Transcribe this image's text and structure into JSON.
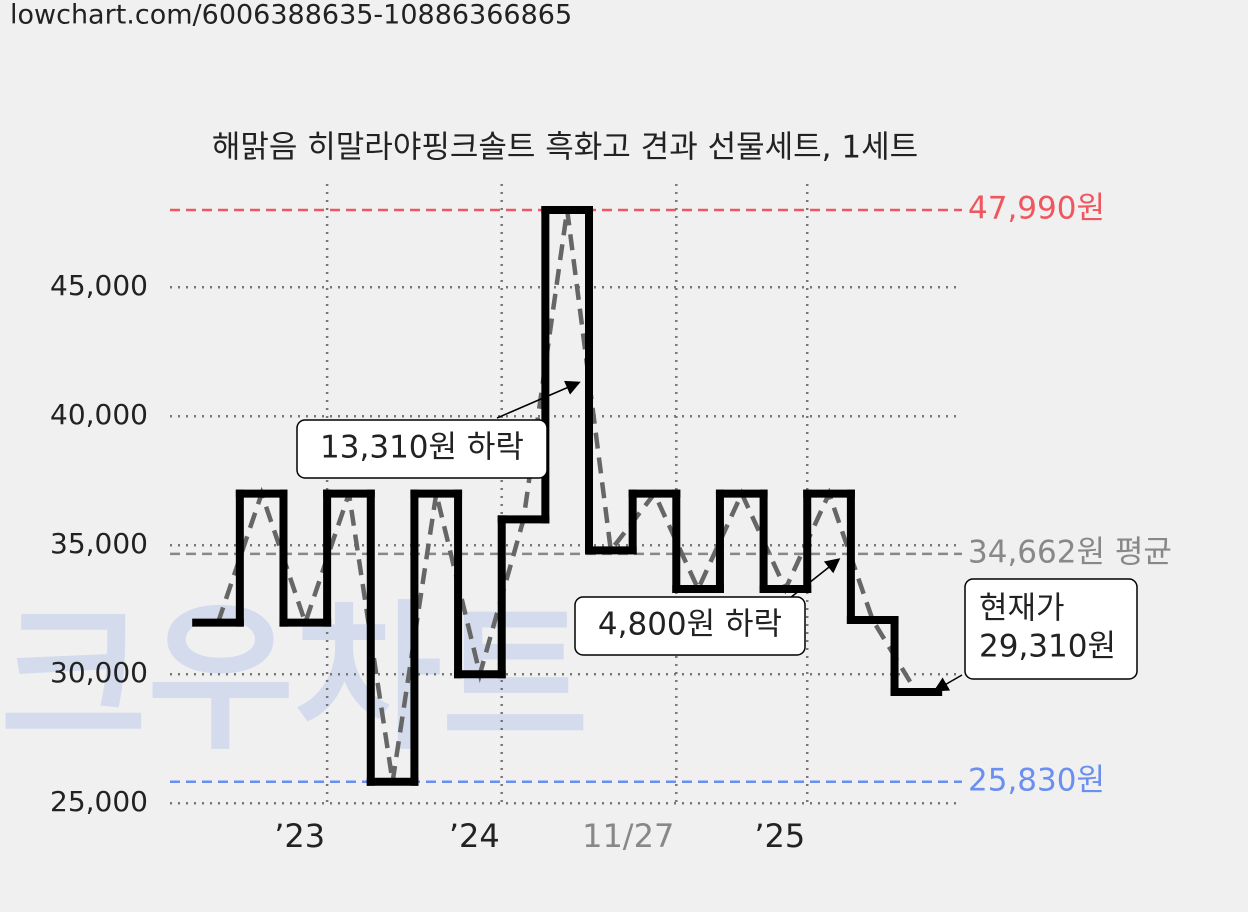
{
  "url": "lowchart.com/6006388635-10886366865",
  "watermark": "크우차트",
  "chart_data": {
    "type": "step",
    "title": "해맑음 히말라야핑크솔트 흑화고 견과 선물세트, 1세트",
    "x": [
      0,
      1,
      2,
      3,
      4,
      5,
      6,
      7,
      8,
      9,
      10,
      11,
      12,
      13,
      14,
      15,
      16
    ],
    "xlim": [
      -0.6,
      17.5
    ],
    "xticks": [
      {
        "value": 3,
        "label": "’23"
      },
      {
        "value": 7,
        "label": "’24"
      },
      {
        "value": 11,
        "label": "11/27",
        "color": "#888888"
      },
      {
        "value": 14,
        "label": "’25"
      }
    ],
    "ylim": [
      24000,
      49000
    ],
    "yticks": [
      {
        "value": 25000,
        "label": "25,000"
      },
      {
        "value": 30000,
        "label": "30,000"
      },
      {
        "value": 35000,
        "label": "35,000"
      },
      {
        "value": 40000,
        "label": "40,000"
      },
      {
        "value": 45000,
        "label": "45,000"
      }
    ],
    "grid": true,
    "series": [
      {
        "color": "#000000",
        "trend_color": "#666666",
        "values": [
          32000,
          37000,
          32000,
          37000,
          25830,
          37000,
          30000,
          36000,
          47990,
          34800,
          37000,
          33300,
          37000,
          33300,
          37000,
          32100,
          29310
        ]
      }
    ],
    "reference_lines": [
      {
        "value": 47990,
        "label": "47,990원",
        "color": "#f0565e"
      },
      {
        "value": 34662,
        "label": "34,662원 평균",
        "color": "#888888"
      },
      {
        "value": 25830,
        "label": "25,830원",
        "color": "#6b8ff0"
      }
    ],
    "annotations": [
      {
        "lines": [
          "13,310원 하락"
        ]
      },
      {
        "lines": [
          "4,800원 하락"
        ]
      },
      {
        "lines": [
          "현재가",
          "29,310원"
        ]
      }
    ]
  }
}
